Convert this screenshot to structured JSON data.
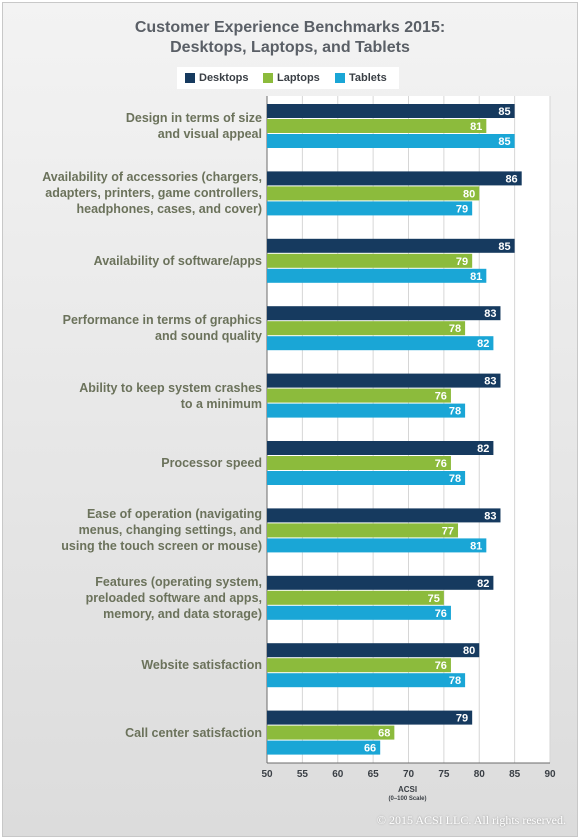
{
  "chart_data": {
    "type": "bar",
    "orientation": "horizontal",
    "title_line1": "Customer Experience Benchmarks 2015:",
    "title_line2": "Desktops, Laptops, and Tablets",
    "xlabel": "ACSI",
    "xlabel_sub": "(0–100 Scale)",
    "xlim": [
      50,
      90
    ],
    "xticks": [
      50,
      55,
      60,
      65,
      70,
      75,
      80,
      85,
      90
    ],
    "legend_position": "top",
    "categories": [
      "Design in terms of size\nand visual appeal",
      "Availability of accessories (chargers,\nadapters, printers, game controllers,\nheadphones, cases, and cover)",
      "Availability of software/apps",
      "Performance in terms of graphics\nand sound quality",
      "Ability to keep system crashes\nto a minimum",
      "Processor speed",
      "Ease of operation (navigating\nmenus, changing settings, and\nusing the touch screen or mouse)",
      "Features (operating system,\npreloaded software and apps,\nmemory, and data storage)",
      "Website satisfaction",
      "Call center satisfaction"
    ],
    "series": [
      {
        "name": "Desktops",
        "color": "#163a5f",
        "values": [
          85,
          86,
          85,
          83,
          83,
          82,
          83,
          82,
          80,
          79
        ]
      },
      {
        "name": "Laptops",
        "color": "#8cbb3c",
        "values": [
          81,
          80,
          79,
          78,
          76,
          76,
          77,
          75,
          76,
          68
        ]
      },
      {
        "name": "Tablets",
        "color": "#1aa6d6",
        "values": [
          85,
          79,
          81,
          82,
          78,
          78,
          81,
          76,
          78,
          66
        ]
      }
    ]
  },
  "footer": {
    "copyright": "© 2015 ACSI LLC. All rights reserved."
  }
}
